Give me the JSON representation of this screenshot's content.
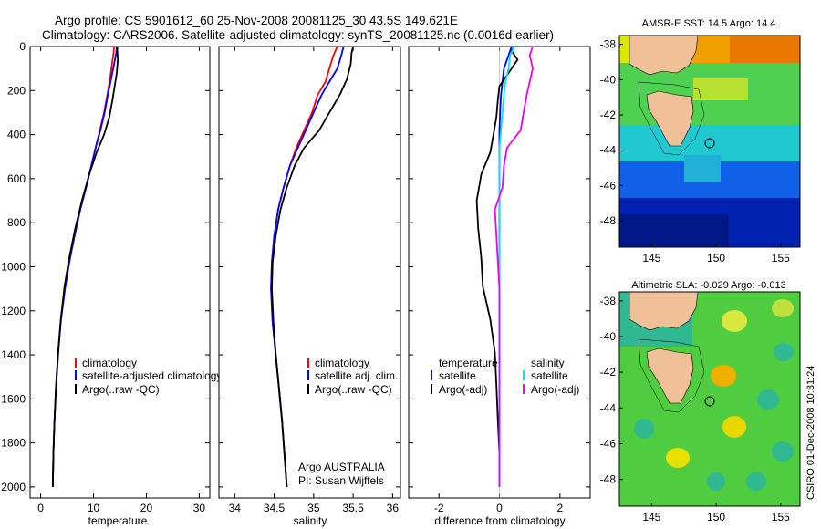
{
  "header": {
    "line1": "Argo profile: CS 5901612_60 25-Nov-2008 20081125_30 43.5S 149.621E",
    "line2": "Climatology: CARS2006. Satellite-adjusted climatology: synTS_20081125.nc (0.0016d earlier)"
  },
  "credit": "CSIRO 01-Dec-2008 10:31:24",
  "colors": {
    "climatology": "#ff0000",
    "satellite": "#0000ff",
    "argo": "#000000",
    "sal_sat": "#00e5ee",
    "sal_argo": "#ee00ee"
  },
  "chart_data": [
    {
      "type": "line",
      "panel": "temperature",
      "xlabel": "temperature",
      "ylabel": "",
      "xlim": [
        -2,
        32
      ],
      "ylim": [
        2050,
        0
      ],
      "xticks": [
        0,
        10,
        20,
        30
      ],
      "yticks": [
        0,
        200,
        400,
        600,
        800,
        1000,
        1200,
        1400,
        1600,
        1800,
        2000
      ],
      "ytick_labels": [
        "0",
        "200",
        "400",
        "600",
        "800",
        "1000",
        "1200",
        "1400",
        "1600",
        "1800",
        "2000"
      ],
      "legend": [
        "climatology",
        "satellite-adjusted climatology",
        "Argo(..raw -QC)"
      ],
      "series": [
        {
          "name": "climatology",
          "color": "#ff0000",
          "x": [
            13.9,
            13.8,
            13.5,
            13.1,
            12.6,
            12.0,
            11.2,
            10.4,
            9.6,
            8.6,
            7.5,
            6.4,
            5.4,
            4.6,
            3.8,
            3.3,
            2.9,
            2.6,
            2.4,
            2.3
          ],
          "y": [
            0,
            30,
            80,
            150,
            220,
            300,
            380,
            460,
            540,
            640,
            740,
            860,
            980,
            1100,
            1250,
            1400,
            1550,
            1700,
            1850,
            2000
          ]
        },
        {
          "name": "satellite-adjusted climatology",
          "color": "#0000ff",
          "x": [
            14.4,
            14.3,
            13.9,
            13.3,
            12.7,
            12.1,
            11.3,
            10.4,
            9.6,
            8.6,
            7.5,
            6.4,
            5.4,
            4.6,
            3.8,
            3.3,
            2.9,
            2.6,
            2.4,
            2.3
          ],
          "y": [
            0,
            30,
            80,
            150,
            220,
            300,
            380,
            460,
            540,
            640,
            740,
            860,
            980,
            1100,
            1250,
            1400,
            1550,
            1700,
            1850,
            2000
          ]
        },
        {
          "name": "Argo(..raw -QC)",
          "color": "#000000",
          "x": [
            14.5,
            14.5,
            14.6,
            14.4,
            14.0,
            13.6,
            13.0,
            12.0,
            10.6,
            9.2,
            7.8,
            6.5,
            5.4,
            4.5,
            3.8,
            3.3,
            2.9,
            2.6,
            2.4,
            2.3
          ],
          "y": [
            0,
            20,
            60,
            120,
            180,
            240,
            320,
            400,
            480,
            580,
            700,
            830,
            960,
            1090,
            1240,
            1390,
            1540,
            1700,
            1850,
            2000
          ]
        }
      ]
    },
    {
      "type": "line",
      "panel": "salinity",
      "xlabel": "salinity",
      "ylabel": "",
      "xlim": [
        33.8,
        36.1
      ],
      "ylim": [
        2050,
        0
      ],
      "xticks": [
        34,
        34.5,
        35,
        35.5,
        36
      ],
      "legend": [
        "climatology",
        "satellite adj. clim.",
        "Argo(..raw -QC)"
      ],
      "annotations": [
        "Argo AUSTRALIA",
        "PI: Susan Wijffels"
      ],
      "series": [
        {
          "name": "climatology",
          "color": "#ff0000",
          "x": [
            35.3,
            35.25,
            35.2,
            35.15,
            35.05,
            34.98,
            34.88,
            34.78,
            34.7,
            34.62,
            34.55,
            34.5,
            34.47,
            34.46,
            34.48,
            34.52,
            34.56,
            34.6,
            34.63,
            34.66
          ],
          "y": [
            0,
            40,
            100,
            160,
            220,
            300,
            380,
            460,
            540,
            640,
            740,
            860,
            980,
            1100,
            1250,
            1400,
            1550,
            1700,
            1850,
            2000
          ]
        },
        {
          "name": "satellite adj. clim.",
          "color": "#0000ff",
          "x": [
            35.38,
            35.35,
            35.3,
            35.2,
            35.1,
            35.0,
            34.9,
            34.8,
            34.7,
            34.62,
            34.55,
            34.5,
            34.47,
            34.46,
            34.48,
            34.52,
            34.56,
            34.6,
            34.63,
            34.66
          ],
          "y": [
            0,
            40,
            100,
            160,
            220,
            300,
            380,
            460,
            540,
            640,
            740,
            860,
            980,
            1100,
            1250,
            1400,
            1550,
            1700,
            1850,
            2000
          ]
        },
        {
          "name": "Argo(..raw -QC)",
          "color": "#000000",
          "x": [
            35.5,
            35.48,
            35.47,
            35.42,
            35.33,
            35.2,
            35.07,
            34.88,
            34.76,
            34.66,
            34.58,
            34.52,
            34.48,
            34.47,
            34.49,
            34.52,
            34.56,
            34.6,
            34.63,
            34.66
          ],
          "y": [
            0,
            30,
            80,
            150,
            220,
            300,
            380,
            460,
            540,
            640,
            740,
            860,
            980,
            1100,
            1250,
            1400,
            1550,
            1700,
            1850,
            2000
          ]
        }
      ]
    },
    {
      "type": "line",
      "panel": "difference",
      "xlabel": "difference from climatology",
      "ylabel": "",
      "xlim": [
        -3,
        3
      ],
      "ylim": [
        2050,
        0
      ],
      "xticks": [
        -2,
        0,
        2
      ],
      "legend_titles": [
        "temperature",
        "salinity"
      ],
      "legend": [
        "satellite",
        "Argo(-adj)",
        "satellite",
        "Argo(-adj)"
      ],
      "series": [
        {
          "name": "temperature satellite",
          "color": "#0000ff",
          "x": [
            0.4,
            0.3,
            0.15,
            0.1,
            0.05,
            0.02,
            0.0,
            0,
            0,
            0,
            0,
            0,
            0,
            0,
            0,
            0,
            0,
            0,
            0,
            0
          ],
          "y": [
            0,
            40,
            100,
            160,
            220,
            300,
            380,
            460,
            540,
            640,
            740,
            860,
            980,
            1100,
            1250,
            1400,
            1550,
            1700,
            1850,
            2000
          ]
        },
        {
          "name": "temperature Argo(-adj)",
          "color": "#000000",
          "x": [
            0.5,
            0.4,
            0.6,
            0.3,
            0.0,
            -0.05,
            -0.1,
            -0.2,
            -0.3,
            -0.6,
            -0.75,
            -0.7,
            -0.6,
            -0.55,
            -0.3,
            -0.15,
            -0.1,
            -0.05,
            0,
            0
          ],
          "y": [
            0,
            20,
            60,
            120,
            180,
            240,
            320,
            400,
            480,
            580,
            700,
            830,
            960,
            1090,
            1240,
            1390,
            1540,
            1700,
            1850,
            2000
          ]
        },
        {
          "name": "salinity satellite",
          "color": "#00e5ee",
          "x": [
            0.5,
            0.35,
            0.3,
            0.2,
            0.15,
            0.1,
            0.05,
            0,
            0,
            0,
            0,
            0,
            0,
            0,
            0,
            0,
            0,
            0,
            0,
            0
          ],
          "y": [
            0,
            40,
            100,
            160,
            220,
            300,
            380,
            460,
            540,
            640,
            740,
            860,
            980,
            1100,
            1250,
            1400,
            1550,
            1700,
            1850,
            2000
          ]
        },
        {
          "name": "salinity Argo(-adj)",
          "color": "#ee00ee",
          "x": [
            1.1,
            1.0,
            1.1,
            1.0,
            0.9,
            0.8,
            0.7,
            0.25,
            0.15,
            0.1,
            -0.15,
            -0.1,
            -0.05,
            0,
            0,
            0,
            0,
            0,
            0,
            0
          ],
          "y": [
            0,
            40,
            100,
            160,
            220,
            300,
            380,
            460,
            540,
            640,
            740,
            860,
            980,
            1100,
            1250,
            1400,
            1550,
            1700,
            1850,
            2000
          ]
        }
      ]
    },
    {
      "type": "heatmap",
      "panel": "sst_map",
      "title": "AMSR-E SST: 14.5 Argo: 14.4",
      "xticks": [
        145,
        150,
        155
      ],
      "yticks": [
        -38,
        -40,
        -42,
        -44,
        -46,
        -48
      ],
      "xlim": [
        142.5,
        156.5
      ],
      "ylim": [
        -49.5,
        -37.5
      ],
      "argo_position": {
        "lon": 149.621,
        "lat": -43.5
      }
    },
    {
      "type": "heatmap",
      "panel": "sla_map",
      "title": "Altimetric SLA: -0.029 Argo: -0.013",
      "xticks": [
        145,
        150,
        155
      ],
      "yticks": [
        -38,
        -40,
        -42,
        -44,
        -46,
        -48
      ],
      "xlim": [
        142.5,
        156.5
      ],
      "ylim": [
        -49.5,
        -37.5
      ],
      "argo_position": {
        "lon": 149.621,
        "lat": -43.5
      }
    }
  ]
}
